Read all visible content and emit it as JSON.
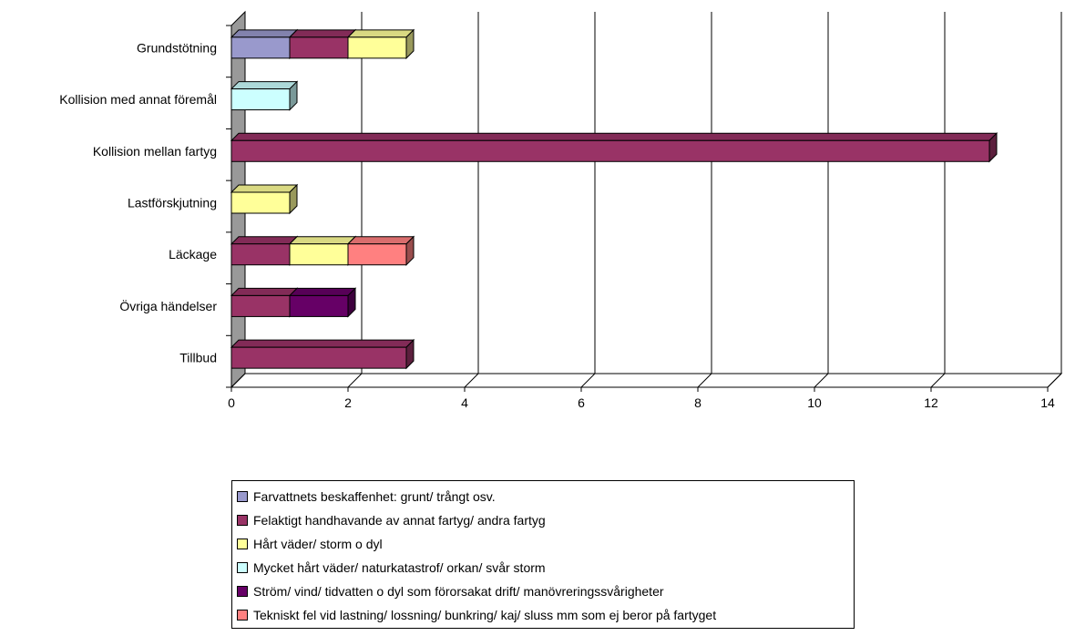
{
  "chart_data": {
    "type": "bar",
    "orientation": "horizontal",
    "stacked": true,
    "three_d": true,
    "categories": [
      "Grundstötning",
      "Kollision med annat föremål",
      "Kollision mellan fartyg",
      "Lastförskjutning",
      "Läckage",
      "Övriga händelser",
      "Tillbud"
    ],
    "series": [
      {
        "name": "Farvattnets beskaffenhet: grunt/ trångt osv.",
        "color": "#9999cc",
        "values": [
          1,
          0,
          0,
          0,
          0,
          0,
          0
        ]
      },
      {
        "name": "Felaktigt handhavande av annat fartyg/ andra fartyg",
        "color": "#993366",
        "values": [
          1,
          0,
          13,
          0,
          1,
          1,
          3
        ]
      },
      {
        "name": "Hårt väder/ storm o dyl",
        "color": "#ffff99",
        "values": [
          1,
          0,
          0,
          1,
          1,
          0,
          0
        ]
      },
      {
        "name": "Mycket hårt väder/ naturkatastrof/ orkan/ svår storm",
        "color": "#ccffff",
        "values": [
          0,
          1,
          0,
          0,
          0,
          0,
          0
        ]
      },
      {
        "name": "Ström/ vind/ tidvatten o dyl som förorsakat drift/ manövreringssvårigheter",
        "color": "#660066",
        "values": [
          0,
          0,
          0,
          0,
          0,
          1,
          0
        ]
      },
      {
        "name": "Tekniskt fel vid lastning/ lossning/ bunkring/ kaj/ sluss mm som ej beror på fartyget",
        "color": "#ff8080",
        "values": [
          0,
          0,
          0,
          0,
          1,
          0,
          0
        ]
      }
    ],
    "x_ticks": [
      "0",
      "2",
      "4",
      "6",
      "8",
      "10",
      "12",
      "14"
    ],
    "xlim": [
      0,
      14
    ],
    "grid": true,
    "legend_position": "bottom",
    "title": "",
    "xlabel": "",
    "ylabel": ""
  }
}
